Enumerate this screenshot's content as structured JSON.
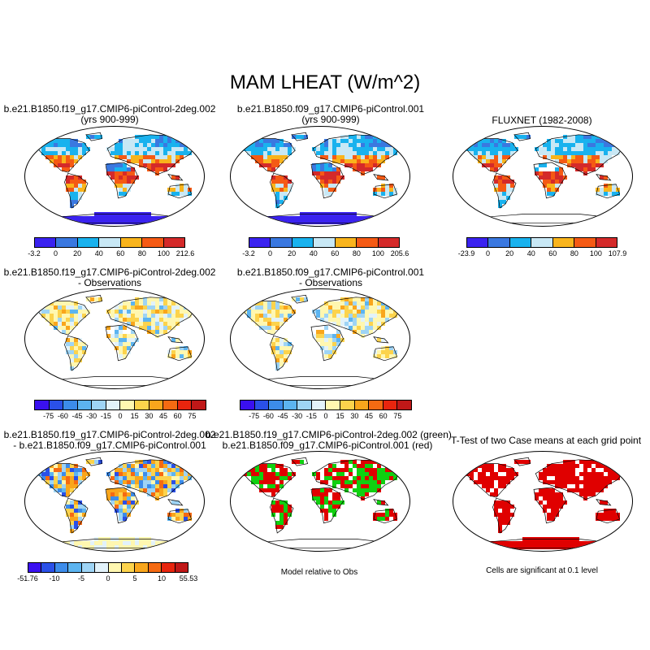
{
  "title": "MAM LHEAT (W/m^2)",
  "panels": {
    "p1": {
      "title1": "b.e21.B1850.f19_g17.CMIP6-piControl-2deg.002",
      "title2": "(yrs 900-999)"
    },
    "p2": {
      "title1": "b.e21.B1850.f09_g17.CMIP6-piControl.001",
      "title2": "(yrs 900-999)"
    },
    "p3": {
      "title1": "FLUXNET (1982-2008)"
    },
    "p4": {
      "title1": "b.e21.B1850.f19_g17.CMIP6-piControl-2deg.002",
      "title2": "- Observations"
    },
    "p5": {
      "title1": "b.e21.B1850.f09_g17.CMIP6-piControl.001",
      "title2": "- Observations"
    },
    "p7": {
      "title1": "b.e21.B1850.f19_g17.CMIP6-piControl-2deg.002",
      "title2": "- b.e21.B1850.f09_g17.CMIP6-piControl.001"
    },
    "p8": {
      "title1": "b.e21.B1850.f19_g17.CMIP6-piControl-2deg.002 (green)",
      "title2": "b.e21.B1850.f09_g17.CMIP6-piControl.001 (red)",
      "note": "Model relative to Obs"
    },
    "p9": {
      "title1": "T-Test of two Case means at each grid point",
      "note": "Cells are significant at 0.1 level"
    }
  },
  "chart_data": [
    {
      "type": "heatmap",
      "title": "b.e21.B1850.f19_g17.CMIP6-piControl-2deg.002 (yrs 900-999)",
      "colorbar": {
        "labels": [
          "-3.2",
          "0",
          "20",
          "40",
          "60",
          "80",
          "100",
          "212.6"
        ],
        "colors": [
          "#3a22f0",
          "#3a78e0",
          "#19b2ee",
          "#c8e8f5",
          "#f9b41c",
          "#f55a14",
          "#d42a2a"
        ]
      }
    },
    {
      "type": "heatmap",
      "title": "b.e21.B1850.f09_g17.CMIP6-piControl.001 (yrs 900-999)",
      "colorbar": {
        "labels": [
          "-3.2",
          "0",
          "20",
          "40",
          "60",
          "80",
          "100",
          "205.6"
        ],
        "colors": [
          "#3a22f0",
          "#3a78e0",
          "#19b2ee",
          "#c8e8f5",
          "#f9b41c",
          "#f55a14",
          "#d42a2a"
        ]
      }
    },
    {
      "type": "heatmap",
      "title": "FLUXNET (1982-2008)",
      "colorbar": {
        "labels": [
          "-23.9",
          "0",
          "20",
          "40",
          "60",
          "80",
          "100",
          "107.9"
        ],
        "colors": [
          "#3a22f0",
          "#3a78e0",
          "#19b2ee",
          "#c8e8f5",
          "#f9b41c",
          "#f55a14",
          "#d42a2a"
        ]
      }
    },
    {
      "type": "heatmap",
      "title": "b.e21.B1850.f19_g17.CMIP6-piControl-2deg.002 - Observations",
      "colorbar": {
        "labels": [
          "-75",
          "-60",
          "-45",
          "-30",
          "-15",
          "0",
          "15",
          "30",
          "45",
          "60",
          "75"
        ],
        "colors": [
          "#3a10f0",
          "#2a50e8",
          "#3c8cea",
          "#5cb4f0",
          "#9ed4f5",
          "#e2f2fa",
          "#fff7b0",
          "#fcd34c",
          "#f9a61c",
          "#f56a12",
          "#e8250e",
          "#c01818"
        ]
      }
    },
    {
      "type": "heatmap",
      "title": "b.e21.B1850.f09_g17.CMIP6-piControl.001 - Observations",
      "colorbar": {
        "labels": [
          "-75",
          "-60",
          "-45",
          "-30",
          "-15",
          "0",
          "15",
          "30",
          "45",
          "60",
          "75"
        ],
        "colors": [
          "#3a10f0",
          "#2a50e8",
          "#3c8cea",
          "#5cb4f0",
          "#9ed4f5",
          "#e2f2fa",
          "#fff7b0",
          "#fcd34c",
          "#f9a61c",
          "#f56a12",
          "#e8250e",
          "#c01818"
        ]
      }
    },
    {
      "type": "heatmap",
      "title": "b.e21.B1850.f19_g17.CMIP6-piControl-2deg.002 - b.e21.B1850.f09_g17.CMIP6-piControl.001",
      "colorbar": {
        "labels": [
          "-51.76",
          "-10",
          "-5",
          "0",
          "5",
          "10",
          "55.53"
        ],
        "colors": [
          "#3a10f0",
          "#2a50e8",
          "#3c8cea",
          "#5cb4f0",
          "#9ed4f5",
          "#e2f2fa",
          "#fff7b0",
          "#fcd34c",
          "#f9a61c",
          "#f56a12",
          "#e8250e",
          "#c01818"
        ]
      }
    },
    {
      "type": "heatmap",
      "title": "Model relative to Obs",
      "legend": [
        "green",
        "red"
      ]
    },
    {
      "type": "heatmap",
      "title": "T-Test of two Case means at each grid point"
    }
  ]
}
